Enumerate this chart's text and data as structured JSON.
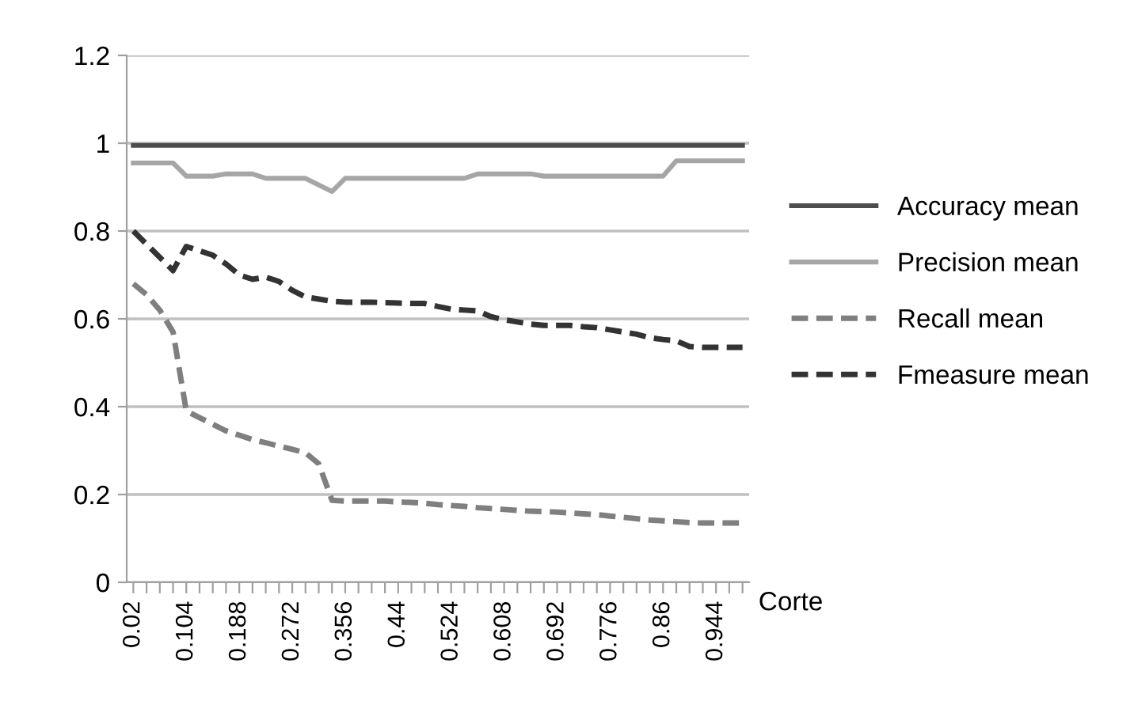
{
  "chart_data": {
    "type": "line",
    "xlabel": "Corte",
    "categories": [
      "0.02",
      null,
      null,
      null,
      "0.104",
      null,
      null,
      null,
      "0.188",
      null,
      null,
      null,
      "0.272",
      null,
      null,
      null,
      "0.356",
      null,
      null,
      null,
      "0.44",
      null,
      null,
      null,
      "0.524",
      null,
      null,
      null,
      "0.608",
      null,
      null,
      null,
      "0.692",
      null,
      null,
      null,
      "0.776",
      null,
      null,
      null,
      "0.86",
      null,
      null,
      null,
      "0.944",
      null,
      null
    ],
    "ylim": [
      0,
      1.2
    ],
    "yticks": [
      0,
      0.2,
      0.4,
      0.6,
      0.8,
      1,
      1.2
    ],
    "grid": "y",
    "legend": "right",
    "marker": "none",
    "series": [
      {
        "name": "Accuracy mean",
        "color": "#4d4d4d",
        "line_style": "solid",
        "values": [
          0.995,
          0.995,
          0.995,
          0.995,
          0.995,
          0.995,
          0.995,
          0.995,
          0.995,
          0.995,
          0.995,
          0.995,
          0.995,
          0.995,
          0.995,
          0.995,
          0.995,
          0.995,
          0.995,
          0.995,
          0.995,
          0.995,
          0.995,
          0.995,
          0.995,
          0.995,
          0.995,
          0.995,
          0.995,
          0.995,
          0.995,
          0.995,
          0.995,
          0.995,
          0.995,
          0.995,
          0.995,
          0.995,
          0.995,
          0.995,
          0.995,
          0.995,
          0.995,
          0.995,
          0.995,
          0.995,
          0.995
        ]
      },
      {
        "name": "Precision mean",
        "color": "#a6a6a6",
        "line_style": "solid",
        "values": [
          0.955,
          0.955,
          0.955,
          0.955,
          0.925,
          0.925,
          0.925,
          0.93,
          0.93,
          0.93,
          0.92,
          0.92,
          0.92,
          0.92,
          0.905,
          0.89,
          0.92,
          0.92,
          0.92,
          0.92,
          0.92,
          0.92,
          0.92,
          0.92,
          0.92,
          0.92,
          0.93,
          0.93,
          0.93,
          0.93,
          0.93,
          0.925,
          0.925,
          0.925,
          0.925,
          0.925,
          0.925,
          0.925,
          0.925,
          0.925,
          0.925,
          0.96,
          0.96,
          0.96,
          0.96,
          0.96,
          0.96
        ]
      },
      {
        "name": "Recall mean",
        "color": "#7f7f7f",
        "line_style": "dashed",
        "values": [
          0.68,
          0.655,
          0.62,
          0.57,
          0.39,
          0.375,
          0.36,
          0.345,
          0.335,
          0.325,
          0.318,
          0.31,
          0.303,
          0.295,
          0.27,
          0.187,
          0.185,
          0.185,
          0.185,
          0.185,
          0.183,
          0.182,
          0.18,
          0.177,
          0.175,
          0.173,
          0.17,
          0.168,
          0.166,
          0.164,
          0.162,
          0.161,
          0.16,
          0.158,
          0.156,
          0.154,
          0.151,
          0.148,
          0.145,
          0.142,
          0.14,
          0.138,
          0.136,
          0.135,
          0.135,
          0.135,
          0.135
        ]
      },
      {
        "name": "Fmeasure mean",
        "color": "#333333",
        "line_style": "dashed",
        "values": [
          0.8,
          0.77,
          0.74,
          0.71,
          0.765,
          0.755,
          0.745,
          0.725,
          0.7,
          0.69,
          0.695,
          0.685,
          0.665,
          0.65,
          0.645,
          0.64,
          0.638,
          0.638,
          0.638,
          0.637,
          0.636,
          0.635,
          0.635,
          0.628,
          0.622,
          0.62,
          0.618,
          0.605,
          0.598,
          0.593,
          0.588,
          0.585,
          0.585,
          0.585,
          0.582,
          0.58,
          0.575,
          0.57,
          0.565,
          0.557,
          0.553,
          0.55,
          0.537,
          0.535,
          0.535,
          0.535,
          0.535
        ]
      }
    ]
  }
}
